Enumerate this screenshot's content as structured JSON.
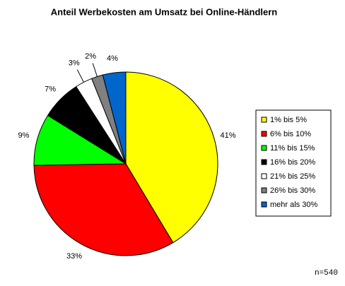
{
  "chart_data": {
    "type": "pie",
    "title": "Anteil Werbekosten am Umsatz bei Online-Händlern",
    "categories": [
      "1% bis 5%",
      "6% bis 10%",
      "11% bis 15%",
      "16% bis 20%",
      "21% bis 25%",
      "26% bis 30%",
      "mehr als 30%"
    ],
    "values": [
      41,
      33,
      9,
      7,
      3,
      2,
      4
    ],
    "value_labels": [
      "41%",
      "33%",
      "9%",
      "7%",
      "3%",
      "2%",
      "4%"
    ],
    "colors": [
      "#ffff00",
      "#ff0000",
      "#00ff00",
      "#000000",
      "#ffffff",
      "#808080",
      "#0066cc"
    ],
    "legend": "right",
    "note": "n=540"
  }
}
